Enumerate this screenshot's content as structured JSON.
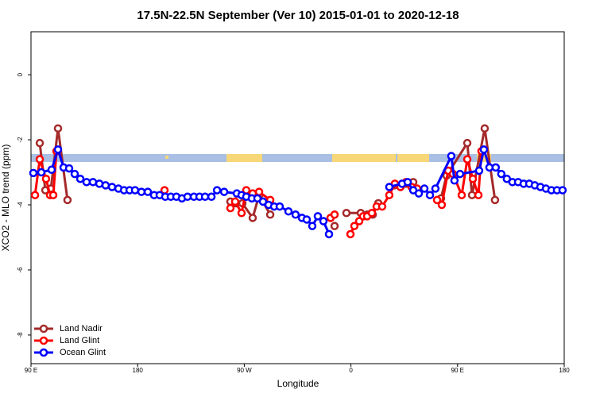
{
  "chart_data": {
    "type": "line",
    "title": "17.5N-22.5N September (Ver 10)   2015-01-01 to 2020-12-18",
    "x_label": "Longitude",
    "y_label": "XCO2 - MLO trend (ppm)",
    "xlim": [
      90,
      540
    ],
    "ylim": [
      -8.88,
      1.32
    ],
    "xticks": [
      {
        "value": 90,
        "label": "90 E"
      },
      180,
      {
        "value": 270,
        "label": "90 W"
      },
      {
        "value": 360,
        "label": "0"
      },
      {
        "value": 450,
        "label": "90 E"
      },
      {
        "value": 540,
        "label": "180"
      }
    ],
    "yticks": [
      0,
      -2,
      -4,
      -6,
      -8
    ],
    "legend": "bottom-left",
    "series": [
      {
        "name": "Land Nadir",
        "color": "#a52a2a",
        "x": [
          97.4,
          102.1,
          106.8,
          112.8,
          120.8,
          null,
          258.3,
          263,
          268.4,
          277.1,
          282.5,
          291.9,
          null,
          346.2,
          null,
          356.2,
          368.3,
          373.7,
          378.4,
          383.1,
          null,
          396.5,
          406.5,
          412.6,
          null,
          436,
          440.7,
          458.2,
          462.2,
          472.9,
          481.6
        ],
        "values": [
          -2.1,
          -3.55,
          -3.5,
          -1.65,
          -3.85,
          null,
          -3.9,
          -3.95,
          -3.95,
          -4.4,
          -3.7,
          -4.3,
          null,
          -4.65,
          null,
          -4.25,
          -4.25,
          -4.3,
          -4.3,
          -3.95,
          null,
          -3.4,
          -3.35,
          -3.3,
          null,
          -3.8,
          -3.1,
          -2.1,
          -3.7,
          -1.65,
          -3.85
        ]
      },
      {
        "name": "Land Glint",
        "color": "#ff0000",
        "x": [
          93.4,
          97.4,
          102.7,
          106.1,
          108.8,
          111.5,
          null,
          202.7,
          null,
          258.3,
          262.3,
          267.7,
          271.7,
          277.1,
          282.5,
          291.9,
          null,
          342.8,
          346.2,
          null,
          359.6,
          362.9,
          367,
          370.3,
          373.7,
          377.7,
          381.7,
          386.4,
          392.4,
          397.1,
          401.8,
          406.5,
          411.2,
          415.9,
          null,
          432.7,
          436.7,
          442.1,
          446.1,
          453.5,
          458.2,
          462.9,
          467.6,
          470.2
        ],
        "values": [
          -3.7,
          -2.6,
          -3.2,
          -3.7,
          -3.7,
          -2.35,
          null,
          -3.55,
          null,
          -4.1,
          -3.9,
          -4.25,
          -3.55,
          -3.65,
          -3.6,
          -3.85,
          null,
          -4.4,
          -4.3,
          null,
          -4.9,
          -4.65,
          -4.5,
          -4.35,
          -4.35,
          -4.25,
          -4.05,
          -4.05,
          -3.7,
          -3.35,
          -3.45,
          -3.3,
          -3.45,
          -3.5,
          null,
          -3.85,
          -4.0,
          -2.95,
          -3.05,
          -3.7,
          -2.6,
          -3.2,
          -3.7,
          -2.35
        ]
      },
      {
        "name": "Ocean Glint",
        "color": "#0000ff",
        "x": [
          92,
          98.7,
          107.4,
          112.8,
          117.5,
          122.2,
          126.9,
          131.6,
          136.9,
          142.3,
          147.7,
          153,
          158.4,
          163.8,
          168.5,
          173.2,
          177.8,
          183.2,
          188.6,
          193.9,
          198.6,
          203.3,
          208,
          212.7,
          217.4,
          222.1,
          227.5,
          232.2,
          236.9,
          242.3,
          247,
          253,
          263.7,
          267.7,
          271.7,
          276.4,
          281.1,
          285.8,
          290.5,
          295.2,
          299.9,
          307.3,
          313.3,
          318.7,
          322.7,
          327.4,
          332.1,
          336.8,
          341.5,
          null,
          392.4,
          403.2,
          407.9,
          412.6,
          417.3,
          422,
          426.7,
          431.3,
          444.7,
          447.4,
          452.1,
          468.2,
          472.2,
          476.9,
          482.2,
          486.9,
          491.6,
          496.3,
          501.1,
          505.8,
          510.5,
          515.2,
          519.9,
          524.6,
          529.2,
          533.9,
          538.6
        ],
        "values": [
          -3.02,
          -3.0,
          -2.92,
          -2.3,
          -2.85,
          -2.88,
          -3.05,
          -3.2,
          -3.3,
          -3.3,
          -3.35,
          -3.4,
          -3.45,
          -3.5,
          -3.55,
          -3.55,
          -3.55,
          -3.6,
          -3.6,
          -3.7,
          -3.7,
          -3.75,
          -3.75,
          -3.75,
          -3.8,
          -3.75,
          -3.75,
          -3.75,
          -3.75,
          -3.75,
          -3.55,
          -3.6,
          -3.65,
          -3.7,
          -3.75,
          -3.8,
          -3.8,
          -3.9,
          -4.0,
          -4.05,
          -4.05,
          -4.2,
          -4.3,
          -4.4,
          -4.45,
          -4.65,
          -4.35,
          -4.5,
          -4.9,
          null,
          -3.45,
          -3.35,
          -3.3,
          -3.55,
          -3.65,
          -3.5,
          -3.7,
          -3.5,
          -2.5,
          -3.25,
          -3.05,
          -2.95,
          -2.3,
          -2.85,
          -2.85,
          -3.05,
          -3.2,
          -3.3,
          -3.3,
          -3.35,
          -3.35,
          -3.4,
          -3.45,
          -3.5,
          -3.55,
          -3.55,
          -3.55
        ]
      }
    ]
  }
}
